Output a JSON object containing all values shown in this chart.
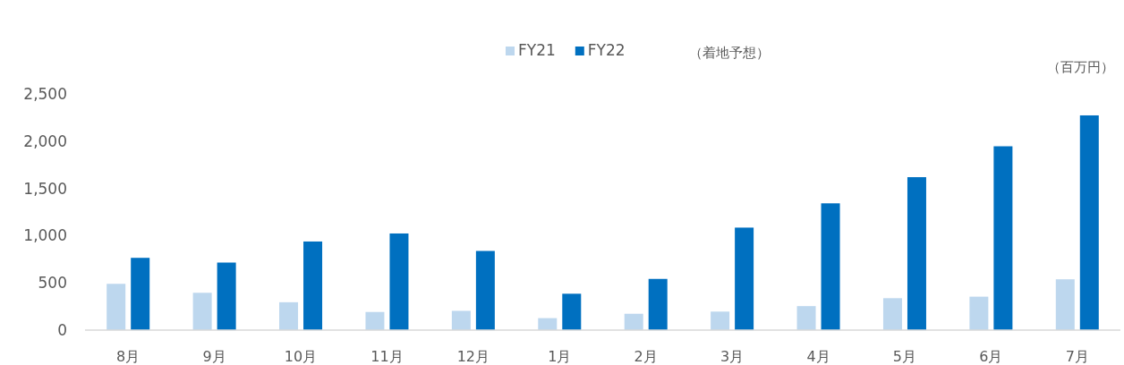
{
  "chart_data": {
    "type": "bar",
    "categories": [
      "8月",
      "9月",
      "10月",
      "11月",
      "12月",
      "1月",
      "2月",
      "3月",
      "4月",
      "5月",
      "6月",
      "7月"
    ],
    "series": [
      {
        "name": "FY21",
        "color": "#bdd7ee",
        "values": [
          490,
          395,
          295,
          192,
          204,
          127,
          173,
          196,
          254,
          338,
          354,
          538
        ]
      },
      {
        "name": "FY22",
        "color": "#0070c0",
        "values": [
          765,
          715,
          938,
          1023,
          838,
          385,
          542,
          1085,
          1342,
          1619,
          1946,
          2273
        ]
      }
    ],
    "ylim": [
      0,
      2500
    ],
    "yticks": [
      0,
      500,
      {
        "value": 1000,
        "label": "1,000"
      },
      {
        "value": 1500,
        "label": "1,500"
      },
      {
        "value": 2000,
        "label": "2,000"
      },
      {
        "value": 2500,
        "label": "2,500"
      }
    ],
    "annotations": [
      "（着地予想）",
      "（百万円）"
    ],
    "legend": "top",
    "grid": false
  }
}
